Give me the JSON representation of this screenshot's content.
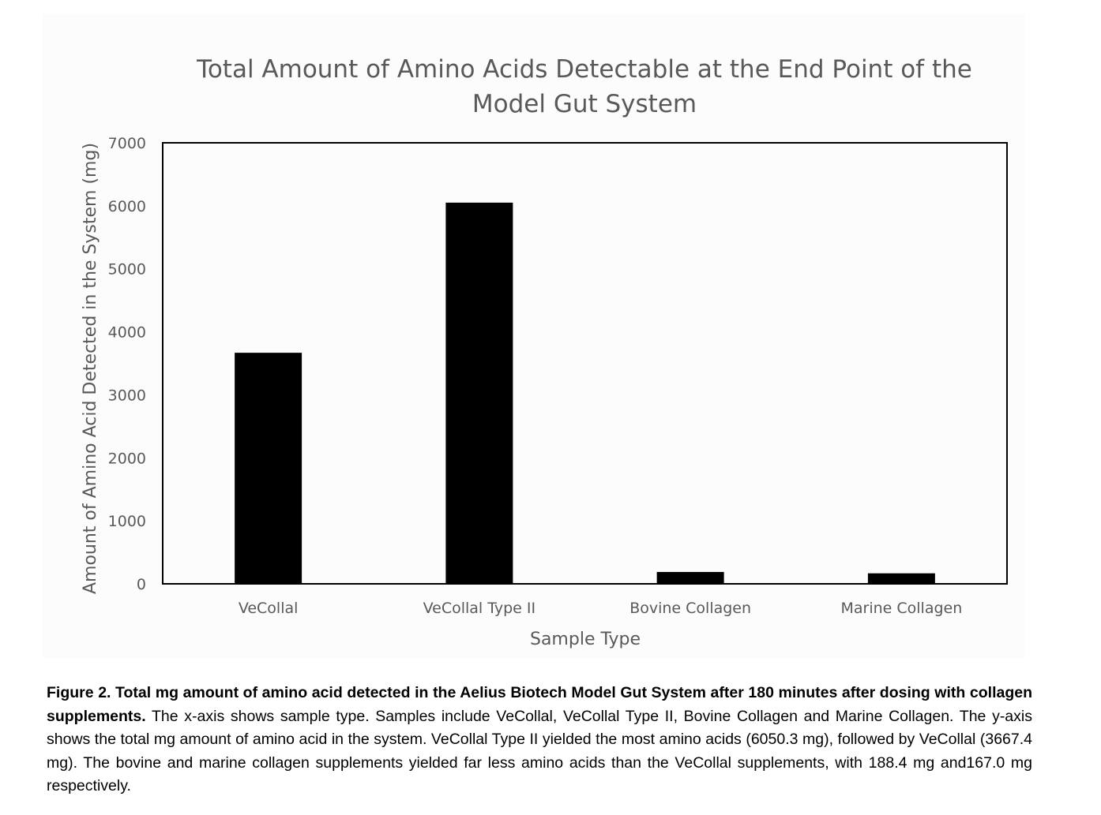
{
  "chart_data": {
    "type": "bar",
    "title_lines": [
      "Total Amount of Amino Acids Detectable at the End Point of the",
      "Model Gut System"
    ],
    "xlabel": "Sample Type",
    "ylabel": "Amount of Amino Acid Detected in the System (mg)",
    "categories": [
      "VeCollal",
      "VeCollal Type II",
      "Bovine Collagen",
      "Marine Collagen"
    ],
    "values": [
      3667.4,
      6050.3,
      188.4,
      167.0
    ],
    "ylim": [
      0,
      7000
    ],
    "yticks": [
      "0",
      "1000",
      "2000",
      "3000",
      "4000",
      "5000",
      "6000",
      "7000"
    ],
    "bar_color": "#000000",
    "grid": false
  },
  "caption": {
    "bold": "Figure 2. Total mg amount of amino acid detected in the Aelius Biotech Model Gut System after 180 minutes after dosing with collagen supplements.",
    "text": " The x-axis shows sample type. Samples include VeCollal, VeCollal Type II, Bovine Collagen and Marine Collagen. The y-axis shows the total mg amount of amino acid in the system. VeCollal Type II yielded the most amino acids (6050.3 mg), followed by VeCollal (3667.4 mg). The bovine and marine collagen supplements yielded far less amino acids than the VeCollal supplements, with 188.4 mg and167.0 mg respectively."
  }
}
